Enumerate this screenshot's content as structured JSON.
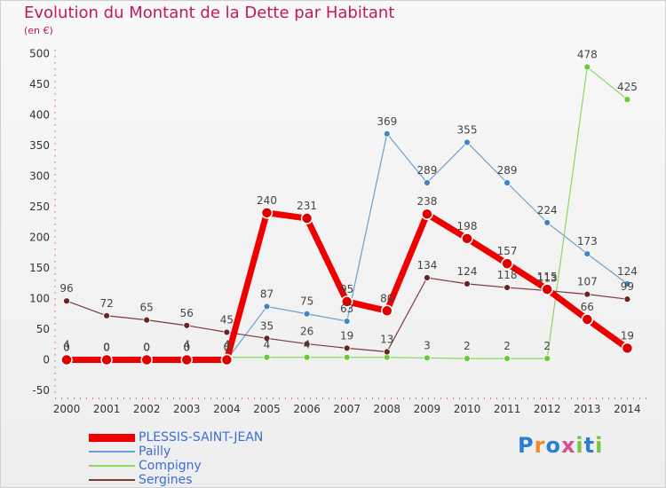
{
  "title": "Evolution du Montant de la Dette par Habitant",
  "unit": "(en €)",
  "logo": {
    "letters": [
      "P",
      "r",
      "o",
      "x",
      "i",
      "t",
      "i"
    ],
    "letter_colors": [
      "#2a7fd4",
      "#f08a24",
      "#2a7fd4",
      "#d94f8a",
      "#7cc242",
      "#2a7fd4",
      "#7cc242"
    ]
  },
  "chart_data": {
    "type": "line",
    "x": [
      "2000",
      "2001",
      "2002",
      "2003",
      "2004",
      "2005",
      "2006",
      "2007",
      "2008",
      "2009",
      "2010",
      "2011",
      "2012",
      "2013",
      "2014"
    ],
    "ylim": [
      -50,
      500
    ],
    "yticks": [
      -50,
      0,
      50,
      100,
      150,
      200,
      250,
      300,
      350,
      400,
      450,
      500
    ],
    "grid": false,
    "legend_position": "bottom-left",
    "series": [
      {
        "name": "PLESSIS-SAINT-JEAN",
        "color": "#ee0000",
        "marker": "#dd0000",
        "width": 7,
        "radius": 6,
        "values": [
          0,
          0,
          0,
          0,
          0,
          240,
          231,
          95,
          80,
          238,
          198,
          157,
          115,
          66,
          19
        ]
      },
      {
        "name": "Pailly",
        "color": "#6a9fcf",
        "marker": "#3f85c6",
        "width": 1.2,
        "radius": 3.5,
        "values": [
          4,
          0,
          0,
          0,
          0,
          87,
          75,
          63,
          369,
          289,
          355,
          289,
          224,
          173,
          124
        ]
      },
      {
        "name": "Compigny",
        "color": "#88d860",
        "marker": "#66cc33",
        "width": 1.2,
        "radius": 3.5,
        "values": [
          0,
          0,
          0,
          4,
          4,
          4,
          4,
          4,
          4,
          3,
          2,
          2,
          2,
          478,
          425
        ]
      },
      {
        "name": "Sergines",
        "color": "#7a3a3a",
        "marker": "#6b2222",
        "width": 1.2,
        "radius": 3.5,
        "values": [
          96,
          72,
          65,
          56,
          45,
          35,
          26,
          19,
          13,
          134,
          124,
          118,
          113,
          107,
          99
        ]
      }
    ],
    "data_labels": [
      [
        "0",
        "0",
        "0",
        "0",
        "0",
        "240",
        "231",
        "95",
        "80",
        "238",
        "198",
        "157",
        "115",
        "66",
        "19"
      ],
      [
        "4",
        "0",
        "0",
        "0",
        "0",
        "87",
        "75",
        "63",
        "369",
        "289",
        "355",
        "289",
        "224",
        "173",
        "124"
      ],
      [
        "0",
        "0",
        "0",
        "4",
        "4",
        "4",
        "4",
        "",
        "",
        "3",
        "2",
        "2",
        "2",
        "478",
        "425"
      ],
      [
        "96",
        "72",
        "65",
        "56",
        "45",
        "35",
        "26",
        "19",
        "13",
        "134",
        "124",
        "118",
        "113",
        "107",
        "99"
      ]
    ]
  }
}
